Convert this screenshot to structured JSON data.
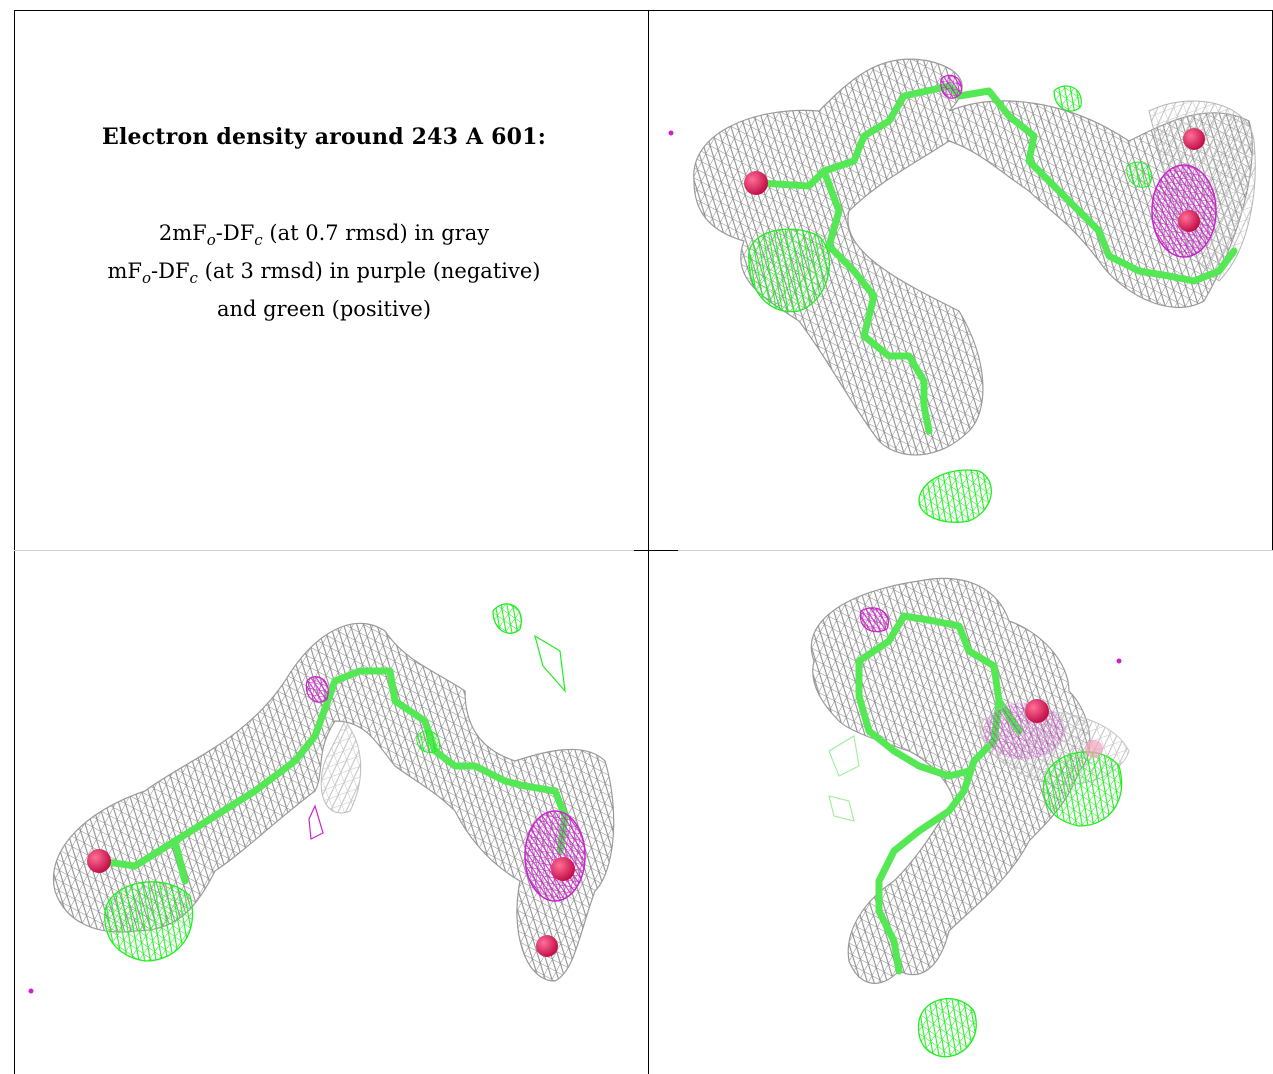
{
  "figure": {
    "title": "Electron density around 243 A 601:",
    "legend_lines": [
      {
        "pre": "2mF",
        "sub1": "o",
        "mid": "-DF",
        "sub2": "c",
        "post": " (at 0.7 rmsd) in gray"
      },
      {
        "pre": "mF",
        "sub1": "o",
        "mid": "-DF",
        "sub2": "c",
        "post": " (at 3 rmsd) in purple (negative)"
      },
      {
        "pre": "",
        "sub1": "",
        "mid": "",
        "sub2": "",
        "post": "and green (positive)"
      }
    ]
  },
  "colors": {
    "map_2fofc": "#8f8f8f",
    "map_negative": "#cc22cc",
    "map_positive": "#22ee22",
    "ligand_bonds": "#55e855",
    "oxygen_atoms": "#e8185a",
    "grid_lines": "#000000"
  },
  "panels": [
    {
      "view": "view-1",
      "position": "top-right"
    },
    {
      "view": "view-2",
      "position": "bottom-left"
    },
    {
      "view": "view-3",
      "position": "bottom-right"
    }
  ]
}
